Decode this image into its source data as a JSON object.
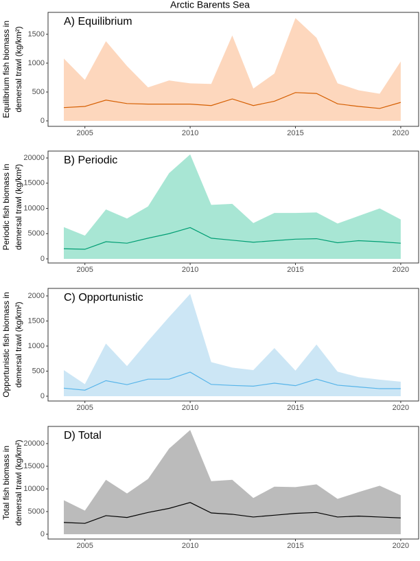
{
  "title": "Arctic Barents Sea",
  "chart_data": [
    {
      "type": "area_line",
      "title": "A) Equilibrium",
      "ylabel": [
        "Equilibrium fish biomass in",
        "demersal trawl (kg/km²)"
      ],
      "x": [
        2004,
        2005,
        2006,
        2007,
        2008,
        2009,
        2010,
        2011,
        2012,
        2013,
        2014,
        2015,
        2016,
        2017,
        2018,
        2019,
        2020
      ],
      "xlim": [
        2003.25,
        2020.85
      ],
      "xticks": [
        2005,
        2010,
        2015,
        2020
      ],
      "ylim": [
        -95,
        1880
      ],
      "yticks": [
        0,
        500,
        1000,
        1500
      ],
      "series": [
        {
          "color": "#fdd7bd",
          "fill": true,
          "values": [
            1080,
            710,
            1380,
            950,
            580,
            700,
            650,
            640,
            1480,
            560,
            820,
            1780,
            1440,
            650,
            530,
            470,
            1030
          ]
        },
        {
          "color": "#d55e00",
          "values": [
            230,
            250,
            360,
            300,
            290,
            290,
            290,
            265,
            380,
            265,
            340,
            490,
            475,
            295,
            250,
            215,
            320
          ]
        }
      ]
    },
    {
      "type": "area_line",
      "title": "B) Periodic",
      "ylabel": [
        "Periodic fish biomass in",
        "demersal trawl (kg/km²)"
      ],
      "x": [
        2004,
        2005,
        2006,
        2007,
        2008,
        2009,
        2010,
        2011,
        2012,
        2013,
        2014,
        2015,
        2016,
        2017,
        2018,
        2019,
        2020
      ],
      "xlim": [
        2003.25,
        2020.85
      ],
      "xticks": [
        2005,
        2010,
        2015,
        2020
      ],
      "ylim": [
        -820,
        21370
      ],
      "yticks": [
        0,
        5000,
        10000,
        15000,
        20000
      ],
      "series": [
        {
          "color": "#a8e6d4",
          "fill": true,
          "values": [
            6300,
            4600,
            9800,
            8000,
            10400,
            17000,
            20700,
            10700,
            10900,
            7100,
            9100,
            9100,
            9200,
            7000,
            8500,
            10000,
            7800
          ]
        },
        {
          "color": "#009e73",
          "values": [
            2000,
            1900,
            3400,
            3100,
            4100,
            5000,
            6200,
            4100,
            3700,
            3300,
            3600,
            3900,
            4000,
            3200,
            3600,
            3400,
            3100
          ]
        }
      ]
    },
    {
      "type": "area_line",
      "title": "C) Opportunistic",
      "ylabel": [
        "Opportunistic fish biomass in",
        "demersal trawl (kg/km²)"
      ],
      "x": [
        2004,
        2005,
        2006,
        2007,
        2008,
        2009,
        2010,
        2011,
        2012,
        2013,
        2014,
        2015,
        2016,
        2017,
        2018,
        2019,
        2020
      ],
      "xlim": [
        2003.25,
        2020.85
      ],
      "xticks": [
        2005,
        2010,
        2015,
        2020
      ],
      "ylim": [
        -96,
        2150
      ],
      "yticks": [
        0,
        500,
        1000,
        1500,
        2000
      ],
      "series": [
        {
          "color": "#cce6f5",
          "fill": true,
          "values": [
            520,
            240,
            1050,
            600,
            1100,
            1580,
            2040,
            680,
            570,
            520,
            960,
            510,
            1030,
            490,
            380,
            330,
            290
          ]
        },
        {
          "color": "#56b4e9",
          "values": [
            160,
            120,
            310,
            230,
            340,
            340,
            480,
            235,
            215,
            200,
            260,
            210,
            340,
            220,
            185,
            150,
            150
          ]
        }
      ]
    },
    {
      "type": "area_line",
      "title": "D) Total",
      "ylabel": [
        "Total fish biomass in",
        "demersal trawl (kg/km²)"
      ],
      "x": [
        2004,
        2005,
        2006,
        2007,
        2008,
        2009,
        2010,
        2011,
        2012,
        2013,
        2014,
        2015,
        2016,
        2017,
        2018,
        2019,
        2020
      ],
      "xlim": [
        2003.25,
        2020.85
      ],
      "xticks": [
        2005,
        2010,
        2015,
        2020
      ],
      "ylim": [
        -1060,
        23790
      ],
      "yticks": [
        0,
        5000,
        10000,
        15000,
        20000
      ],
      "series": [
        {
          "color": "#bbbbbb",
          "fill": true,
          "values": [
            7500,
            5200,
            12000,
            9000,
            12200,
            18900,
            23000,
            11700,
            12000,
            8000,
            10500,
            10400,
            11000,
            7800,
            9300,
            10700,
            8600
          ]
        },
        {
          "color": "#000000",
          "values": [
            2600,
            2400,
            4100,
            3700,
            4800,
            5700,
            7000,
            4700,
            4400,
            3800,
            4200,
            4600,
            4800,
            3800,
            4000,
            3800,
            3600
          ]
        }
      ]
    }
  ]
}
